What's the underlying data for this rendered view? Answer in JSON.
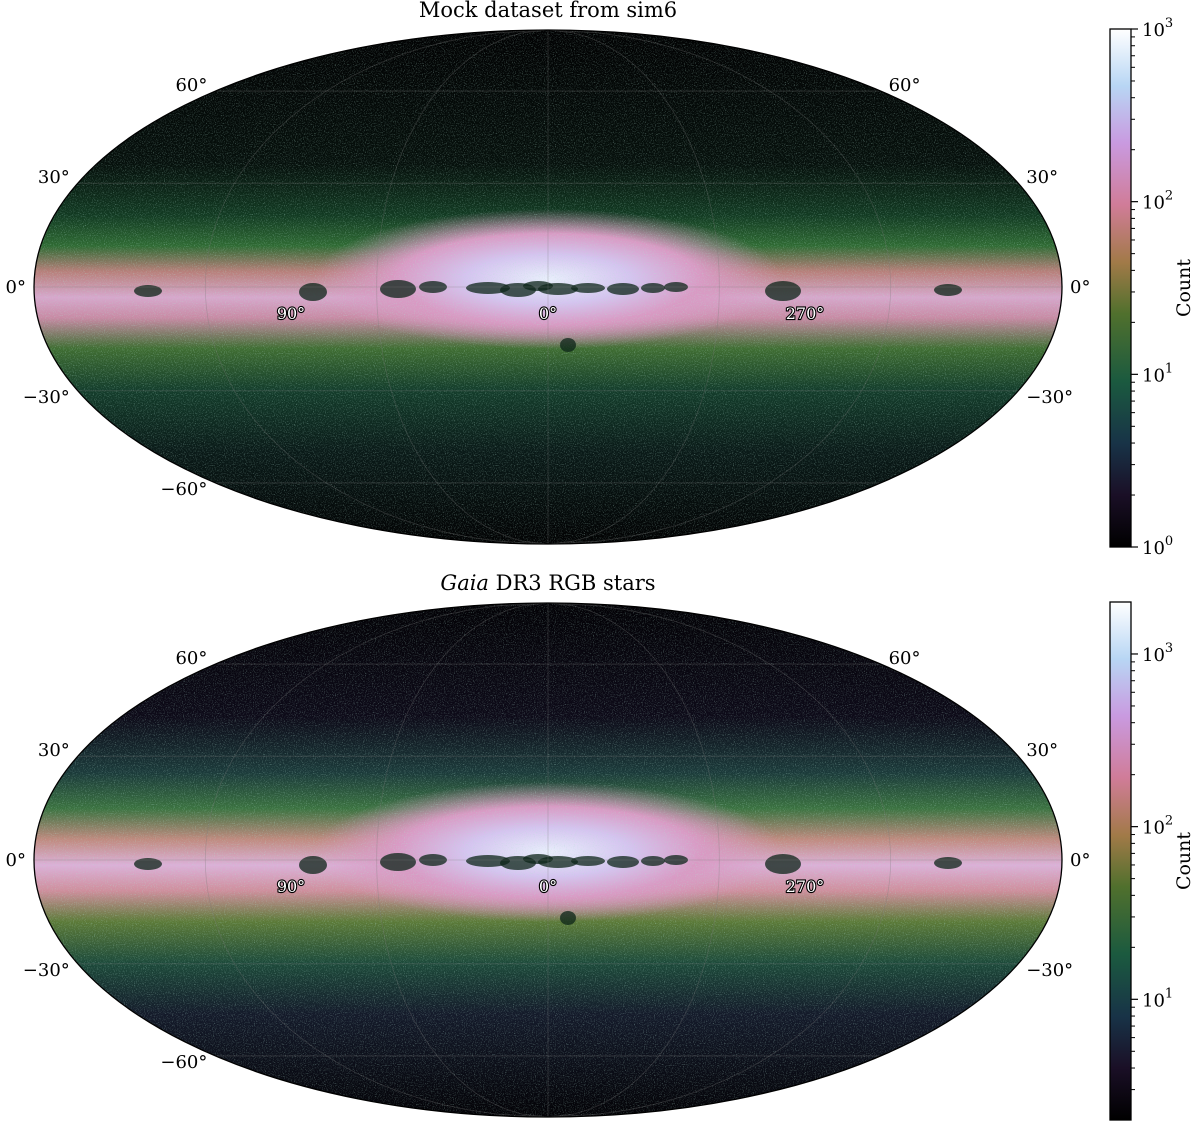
{
  "chart_data": [
    {
      "type": "heatmap",
      "projection": "mollweide",
      "title": "Mock dataset from sim6",
      "title_prefix_italic": "",
      "lat_ticks_left": [
        "60°",
        "30°",
        "0°",
        "−30°",
        "−60°"
      ],
      "lat_ticks_right": [
        "60°",
        "30°",
        "0°",
        "−30°"
      ],
      "lon_ticks": [
        "90°",
        "0°",
        "270°"
      ],
      "grid": true,
      "colormap": "cubehelix",
      "colorbar": {
        "label": "Count",
        "scale": "log",
        "range": [
          1,
          1000
        ],
        "ticks": [
          {
            "value": 1,
            "base": "10",
            "exp": "0"
          },
          {
            "value": 10,
            "base": "10",
            "exp": "1"
          },
          {
            "value": 100,
            "base": "10",
            "exp": "2"
          },
          {
            "value": 1000,
            "base": "10",
            "exp": "3"
          }
        ]
      }
    },
    {
      "type": "heatmap",
      "projection": "mollweide",
      "title": " DR3 RGB stars",
      "title_prefix_italic": "Gaia",
      "lat_ticks_left": [
        "60°",
        "30°",
        "0°",
        "−30°",
        "−60°"
      ],
      "lat_ticks_right": [
        "60°",
        "30°",
        "0°",
        "−30°"
      ],
      "lon_ticks": [
        "90°",
        "0°",
        "270°"
      ],
      "grid": true,
      "colormap": "cubehelix",
      "colorbar": {
        "label": "Count",
        "scale": "log",
        "range": [
          2,
          2000
        ],
        "ticks": [
          {
            "value": 10,
            "base": "10",
            "exp": "1"
          },
          {
            "value": 100,
            "base": "10",
            "exp": "2"
          },
          {
            "value": 1000,
            "base": "10",
            "exp": "3"
          }
        ]
      }
    }
  ]
}
